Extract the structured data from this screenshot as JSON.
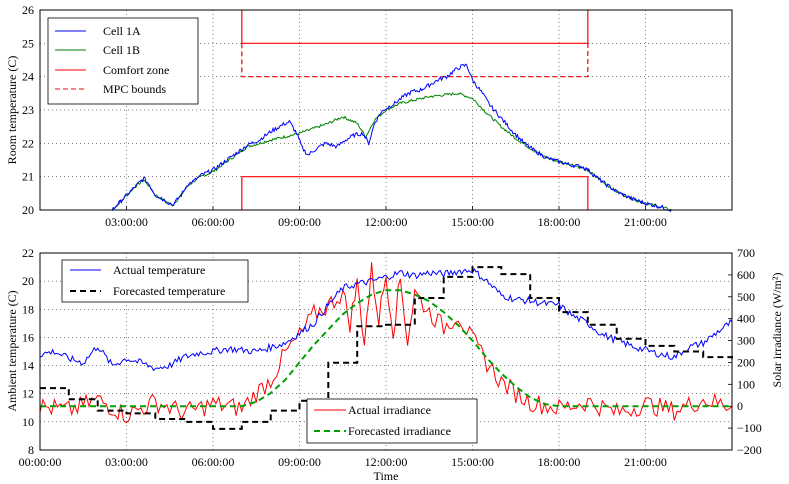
{
  "chart_data": [
    {
      "type": "line",
      "ylabel": "Room temperature (C)",
      "xlabel": "",
      "xlim_hours": [
        0,
        24
      ],
      "ylim": [
        20,
        26
      ],
      "x_ticks": [
        "03:00:00",
        "06:00:00",
        "09:00:00",
        "12:00:00",
        "15:00:00",
        "18:00:00",
        "21:00:00"
      ],
      "y_ticks": [
        "20",
        "21",
        "22",
        "23",
        "24",
        "25",
        "26"
      ],
      "grid": true,
      "legend_position": "top-left",
      "legend": [
        "Cell 1A",
        "Cell 1B",
        "Comfort zone",
        "MPC bounds"
      ],
      "colors": {
        "cell_1a": "#0000ff",
        "cell_1b": "#008000",
        "comfort": "#ff0000",
        "mpc": "#ff0000"
      },
      "series": [
        {
          "name": "Cell 1A",
          "x": [
            2.5,
            2.9,
            3.3,
            3.6,
            3.8,
            4.0,
            4.3,
            4.6,
            4.9,
            5.1,
            5.3,
            5.6,
            6.0,
            6.4,
            6.8,
            7.2,
            7.6,
            8.0,
            8.4,
            8.65,
            8.9,
            9.1,
            9.3,
            9.6,
            9.9,
            10.3,
            10.6,
            10.9,
            11.2,
            11.4,
            11.6,
            11.8,
            12.0,
            12.3,
            12.6,
            12.9,
            13.2,
            13.5,
            13.8,
            14.1,
            14.4,
            14.6,
            14.8,
            15.0,
            15.3,
            15.6,
            16.0,
            16.4,
            16.8,
            17.2,
            17.6,
            18.0,
            18.4,
            18.8,
            19.0,
            19.5,
            20.0,
            20.5,
            21.0,
            21.5,
            21.9
          ],
          "values": [
            20.0,
            20.35,
            20.7,
            20.95,
            20.75,
            20.45,
            20.3,
            20.15,
            20.45,
            20.75,
            20.85,
            21.05,
            21.2,
            21.45,
            21.7,
            21.95,
            22.1,
            22.35,
            22.55,
            22.65,
            22.3,
            21.85,
            21.65,
            21.85,
            22.0,
            21.9,
            22.1,
            22.25,
            22.3,
            22.0,
            22.6,
            22.9,
            23.05,
            23.2,
            23.4,
            23.55,
            23.6,
            23.75,
            23.9,
            24.0,
            24.2,
            24.3,
            24.35,
            23.9,
            23.55,
            23.15,
            22.75,
            22.35,
            22.0,
            21.75,
            21.55,
            21.45,
            21.35,
            21.3,
            21.2,
            20.85,
            20.55,
            20.35,
            20.2,
            20.1,
            20.0
          ]
        },
        {
          "name": "Cell 1B",
          "x": [
            2.5,
            2.9,
            3.3,
            3.6,
            3.8,
            4.0,
            4.3,
            4.6,
            4.9,
            5.1,
            5.3,
            5.6,
            6.0,
            6.4,
            6.8,
            7.2,
            7.6,
            8.0,
            8.5,
            9.0,
            9.5,
            10.0,
            10.5,
            11.0,
            11.3,
            11.6,
            12.0,
            12.5,
            13.0,
            13.5,
            14.0,
            14.5,
            15.0,
            15.5,
            16.0,
            16.5,
            17.0,
            17.5,
            18.0,
            18.5,
            19.0,
            19.5,
            20.0,
            20.5,
            21.0,
            21.5,
            21.9
          ],
          "values": [
            20.0,
            20.35,
            20.7,
            20.9,
            20.7,
            20.45,
            20.3,
            20.15,
            20.45,
            20.7,
            20.85,
            21.0,
            21.15,
            21.4,
            21.65,
            21.9,
            22.0,
            22.1,
            22.2,
            22.3,
            22.45,
            22.6,
            22.8,
            22.6,
            22.2,
            22.7,
            23.0,
            23.2,
            23.3,
            23.4,
            23.45,
            23.5,
            23.35,
            22.9,
            22.5,
            22.15,
            21.85,
            21.6,
            21.45,
            21.35,
            21.2,
            20.85,
            20.55,
            20.35,
            20.2,
            20.1,
            20.0
          ]
        }
      ],
      "comfort_zone": {
        "x_start_hours": 7,
        "x_end_hours": 19,
        "lower": 21,
        "upper": 25
      },
      "mpc_bounds": {
        "x_start_hours": 7,
        "x_end_hours": 19,
        "upper": 24
      }
    },
    {
      "type": "line",
      "xlabel": "Time",
      "ylabel": "Ambient temperature (C)",
      "ylabel_right": "Solar irradiance (W/m²)",
      "xlim_hours": [
        0,
        24
      ],
      "ylim": [
        8,
        22
      ],
      "ylim_right": [
        -200,
        700
      ],
      "x_ticks": [
        "00:00:00",
        "03:00:00",
        "06:00:00",
        "09:00:00",
        "12:00:00",
        "15:00:00",
        "18:00:00",
        "21:00:00"
      ],
      "y_ticks": [
        "8",
        "10",
        "12",
        "14",
        "16",
        "18",
        "20",
        "22"
      ],
      "y_ticks_right": [
        "−200",
        "−100",
        "0",
        "100",
        "200",
        "300",
        "400",
        "500",
        "600",
        "700"
      ],
      "grid": true,
      "legend_temp": [
        "Actual temperature",
        "Forecasted temperature"
      ],
      "legend_irr": [
        "Actual  irradiance",
        "Forecasted irradiance"
      ],
      "colors": {
        "actual_temp": "#0000ff",
        "forecast_temp": "#000000",
        "actual_irr": "#ff0000",
        "forecast_irr": "#00a000"
      },
      "actual_temperature": {
        "x": [
          0,
          0.5,
          1.0,
          1.5,
          2.0,
          2.5,
          3.0,
          3.5,
          4.0,
          4.5,
          5.0,
          5.5,
          6.0,
          6.5,
          7.0,
          7.5,
          8.0,
          8.5,
          9.0,
          9.5,
          10.0,
          10.5,
          11.0,
          11.5,
          12.0,
          12.5,
          13.0,
          13.5,
          14.0,
          14.5,
          15.0,
          15.5,
          16.0,
          16.5,
          17.0,
          17.5,
          18.0,
          18.5,
          19.0,
          19.5,
          20.0,
          20.5,
          21.0,
          21.5,
          22.0,
          22.5,
          23.0,
          23.5,
          24.0
        ],
        "values": [
          14.8,
          15.0,
          14.5,
          14.2,
          15.4,
          14.0,
          14.5,
          14.2,
          13.8,
          14.0,
          14.6,
          14.9,
          15.0,
          15.2,
          15.1,
          15.0,
          15.3,
          15.6,
          16.3,
          17.0,
          18.3,
          19.5,
          19.8,
          20.0,
          20.3,
          20.6,
          20.4,
          20.6,
          20.5,
          20.7,
          20.8,
          20.0,
          19.0,
          18.7,
          18.6,
          18.4,
          18.3,
          17.5,
          17.0,
          16.2,
          15.8,
          15.4,
          15.1,
          14.8,
          14.6,
          15.3,
          15.6,
          16.4,
          17.1
        ]
      },
      "forecasted_temperature": {
        "x": [
          0,
          1,
          2,
          3,
          4,
          5,
          6,
          7,
          8,
          9,
          10,
          11,
          12,
          13,
          14,
          15,
          16,
          17,
          18,
          19,
          20,
          21,
          22,
          23,
          24
        ],
        "values": [
          12.4,
          11.6,
          10.8,
          10.6,
          10.2,
          10.0,
          9.5,
          10.0,
          10.8,
          11.5,
          14.2,
          16.8,
          16.9,
          18.8,
          20.3,
          21.0,
          20.5,
          18.8,
          17.8,
          16.9,
          15.9,
          15.4,
          15.0,
          14.6,
          14.4
        ]
      },
      "actual_irradiance": {
        "x": [
          0,
          1,
          2,
          3,
          4,
          5,
          6,
          7,
          7.5,
          8,
          8.5,
          9,
          9.5,
          10,
          10.5,
          10.75,
          11,
          11.25,
          11.5,
          11.75,
          12,
          12.25,
          12.5,
          12.75,
          13,
          13.5,
          14,
          14.5,
          15,
          15.5,
          16,
          16.5,
          17,
          18,
          19,
          20,
          21,
          22,
          23,
          24
        ],
        "values": [
          0,
          -20,
          30,
          -40,
          20,
          -30,
          10,
          -10,
          60,
          120,
          240,
          320,
          420,
          460,
          520,
          380,
          560,
          300,
          620,
          400,
          600,
          350,
          580,
          300,
          520,
          430,
          360,
          420,
          300,
          200,
          110,
          60,
          20,
          -10,
          20,
          -30,
          10,
          -20,
          30,
          0
        ]
      },
      "forecasted_irradiance": {
        "x": [
          0,
          6,
          7,
          7.5,
          8,
          8.5,
          9,
          9.5,
          10,
          10.5,
          11,
          11.5,
          12,
          12.5,
          13,
          13.5,
          14,
          14.5,
          15,
          15.5,
          16,
          16.5,
          17,
          17.5,
          18,
          24
        ],
        "values": [
          0,
          0,
          0,
          20,
          60,
          120,
          200,
          280,
          350,
          420,
          470,
          510,
          530,
          530,
          510,
          480,
          430,
          370,
          300,
          220,
          150,
          90,
          40,
          10,
          0,
          0
        ]
      }
    }
  ]
}
